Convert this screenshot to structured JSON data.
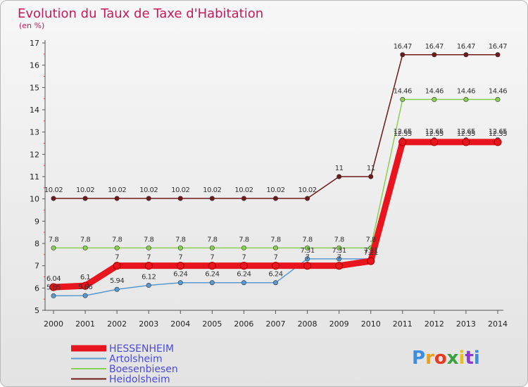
{
  "chart_data": {
    "type": "line",
    "title": "Evolution du Taux de Taxe d'Habitation",
    "subtitle": "(en %)",
    "xlabel": "",
    "ylabel": "",
    "ylim": [
      5,
      17
    ],
    "yticks": [
      5,
      6,
      7,
      8,
      9,
      10,
      11,
      12,
      13,
      14,
      15,
      16,
      17
    ],
    "categories": [
      "2000",
      "2001",
      "2002",
      "2003",
      "2004",
      "2005",
      "2006",
      "2007",
      "2008",
      "2009",
      "2010",
      "2011",
      "2012",
      "2013",
      "2014"
    ],
    "series": [
      {
        "name": "HESSENHEIM",
        "color": "#e8141e",
        "values": [
          6.04,
          6.1,
          7,
          7,
          7,
          7,
          7,
          7,
          7,
          7,
          7.21,
          12.55,
          12.55,
          12.55,
          12.55
        ],
        "labels": [
          "6.04",
          "6.1",
          "7",
          "7",
          "7",
          "7",
          "7",
          "7",
          "7",
          "7",
          "7.21",
          "12.55",
          "12.55",
          "12.55",
          "12.55"
        ]
      },
      {
        "name": "Artolsheim",
        "color": "#5a9ad0",
        "values": [
          5.65,
          5.66,
          5.94,
          6.12,
          6.24,
          6.24,
          6.24,
          6.24,
          7.31,
          7.31,
          7.31,
          12.65,
          12.65,
          12.65,
          12.65
        ],
        "labels": [
          "5.65",
          "5.66",
          "5.94",
          "6.12",
          "6.24",
          "6.24",
          "6.24",
          "6.24",
          "7.31",
          "7.31",
          "7.31",
          "12.65",
          "12.65",
          "12.65",
          "12.65"
        ]
      },
      {
        "name": "Boesenbiesen",
        "color": "#88d050",
        "values": [
          7.8,
          7.8,
          7.8,
          7.8,
          7.8,
          7.8,
          7.8,
          7.8,
          7.8,
          7.8,
          7.8,
          14.46,
          14.46,
          14.46,
          14.46
        ],
        "labels": [
          "7.8",
          "7.8",
          "7.8",
          "7.8",
          "7.8",
          "7.8",
          "7.8",
          "7.8",
          "7.8",
          "7.8",
          "7.8",
          "14.46",
          "14.46",
          "14.46",
          "14.46"
        ]
      },
      {
        "name": "Heidolsheim",
        "color": "#6e1a1a",
        "values": [
          10.02,
          10.02,
          10.02,
          10.02,
          10.02,
          10.02,
          10.02,
          10.02,
          10.02,
          11,
          11,
          16.47,
          16.47,
          16.47,
          16.47
        ],
        "labels": [
          "10.02",
          "10.02",
          "10.02",
          "10.02",
          "10.02",
          "10.02",
          "10.02",
          "10.02",
          "10.02",
          "11",
          "11",
          "16.47",
          "16.47",
          "16.47",
          "16.47"
        ]
      }
    ],
    "legend": "bottom-left",
    "grid": false
  },
  "branding": {
    "logo_text": "Proxiti",
    "letter_colors": [
      "#3a8de0",
      "#e8a020",
      "#e83a20",
      "#3aa040",
      "#e8c020",
      "#8a3ad0",
      "#3a8de0"
    ]
  }
}
